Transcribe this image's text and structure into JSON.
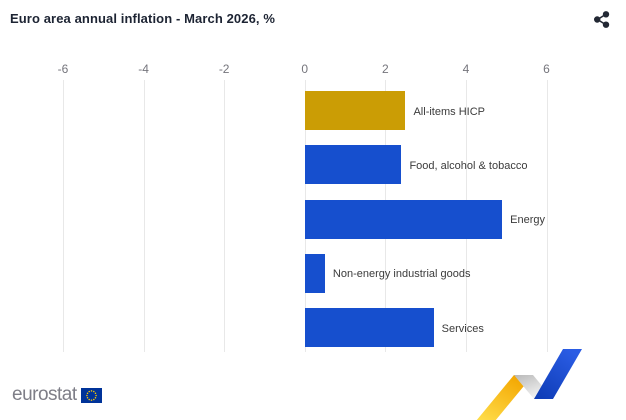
{
  "header": {
    "title": "Euro area annual inflation - March 2026, %"
  },
  "chart_data": {
    "type": "bar",
    "orientation": "horizontal",
    "title": "Euro area annual inflation - March 2026, %",
    "xlabel": "",
    "ylabel": "",
    "xlim": [
      -6,
      6
    ],
    "xticks": [
      -6,
      -4,
      -2,
      0,
      2,
      4,
      6
    ],
    "grid": true,
    "categories": [
      "All-items HICP",
      "Food, alcohol & tobacco",
      "Energy",
      "Non-energy industrial goods",
      "Services"
    ],
    "values": [
      2.5,
      2.4,
      4.9,
      0.5,
      3.2
    ],
    "items": [
      {
        "label": "All-items HICP",
        "value": 2.5,
        "color": "#cb9d05"
      },
      {
        "label": "Food, alcohol & tobacco",
        "value": 2.4,
        "color": "#164fce"
      },
      {
        "label": "Energy",
        "value": 4.9,
        "color": "#164fce"
      },
      {
        "label": "Non-energy industrial goods",
        "value": 0.5,
        "color": "#164fce"
      },
      {
        "label": "Services",
        "value": 3.2,
        "color": "#164fce"
      }
    ]
  },
  "footer": {
    "logo_text": "eurostat"
  },
  "icons": {
    "share": "share-icon",
    "eu_flag": "eu-flag-icon",
    "zigzag": "eurostat-zigzag-graphic"
  },
  "colors": {
    "accent_gold": "#cb9d05",
    "accent_blue": "#164fce",
    "grid": "#e8e8e8",
    "tick_text": "#75757c",
    "label_text": "#3b3b3b",
    "title_text": "#1d2433",
    "logo_text": "#7e7e87",
    "flag_blue": "#003399",
    "flag_star": "#ffcc00"
  }
}
